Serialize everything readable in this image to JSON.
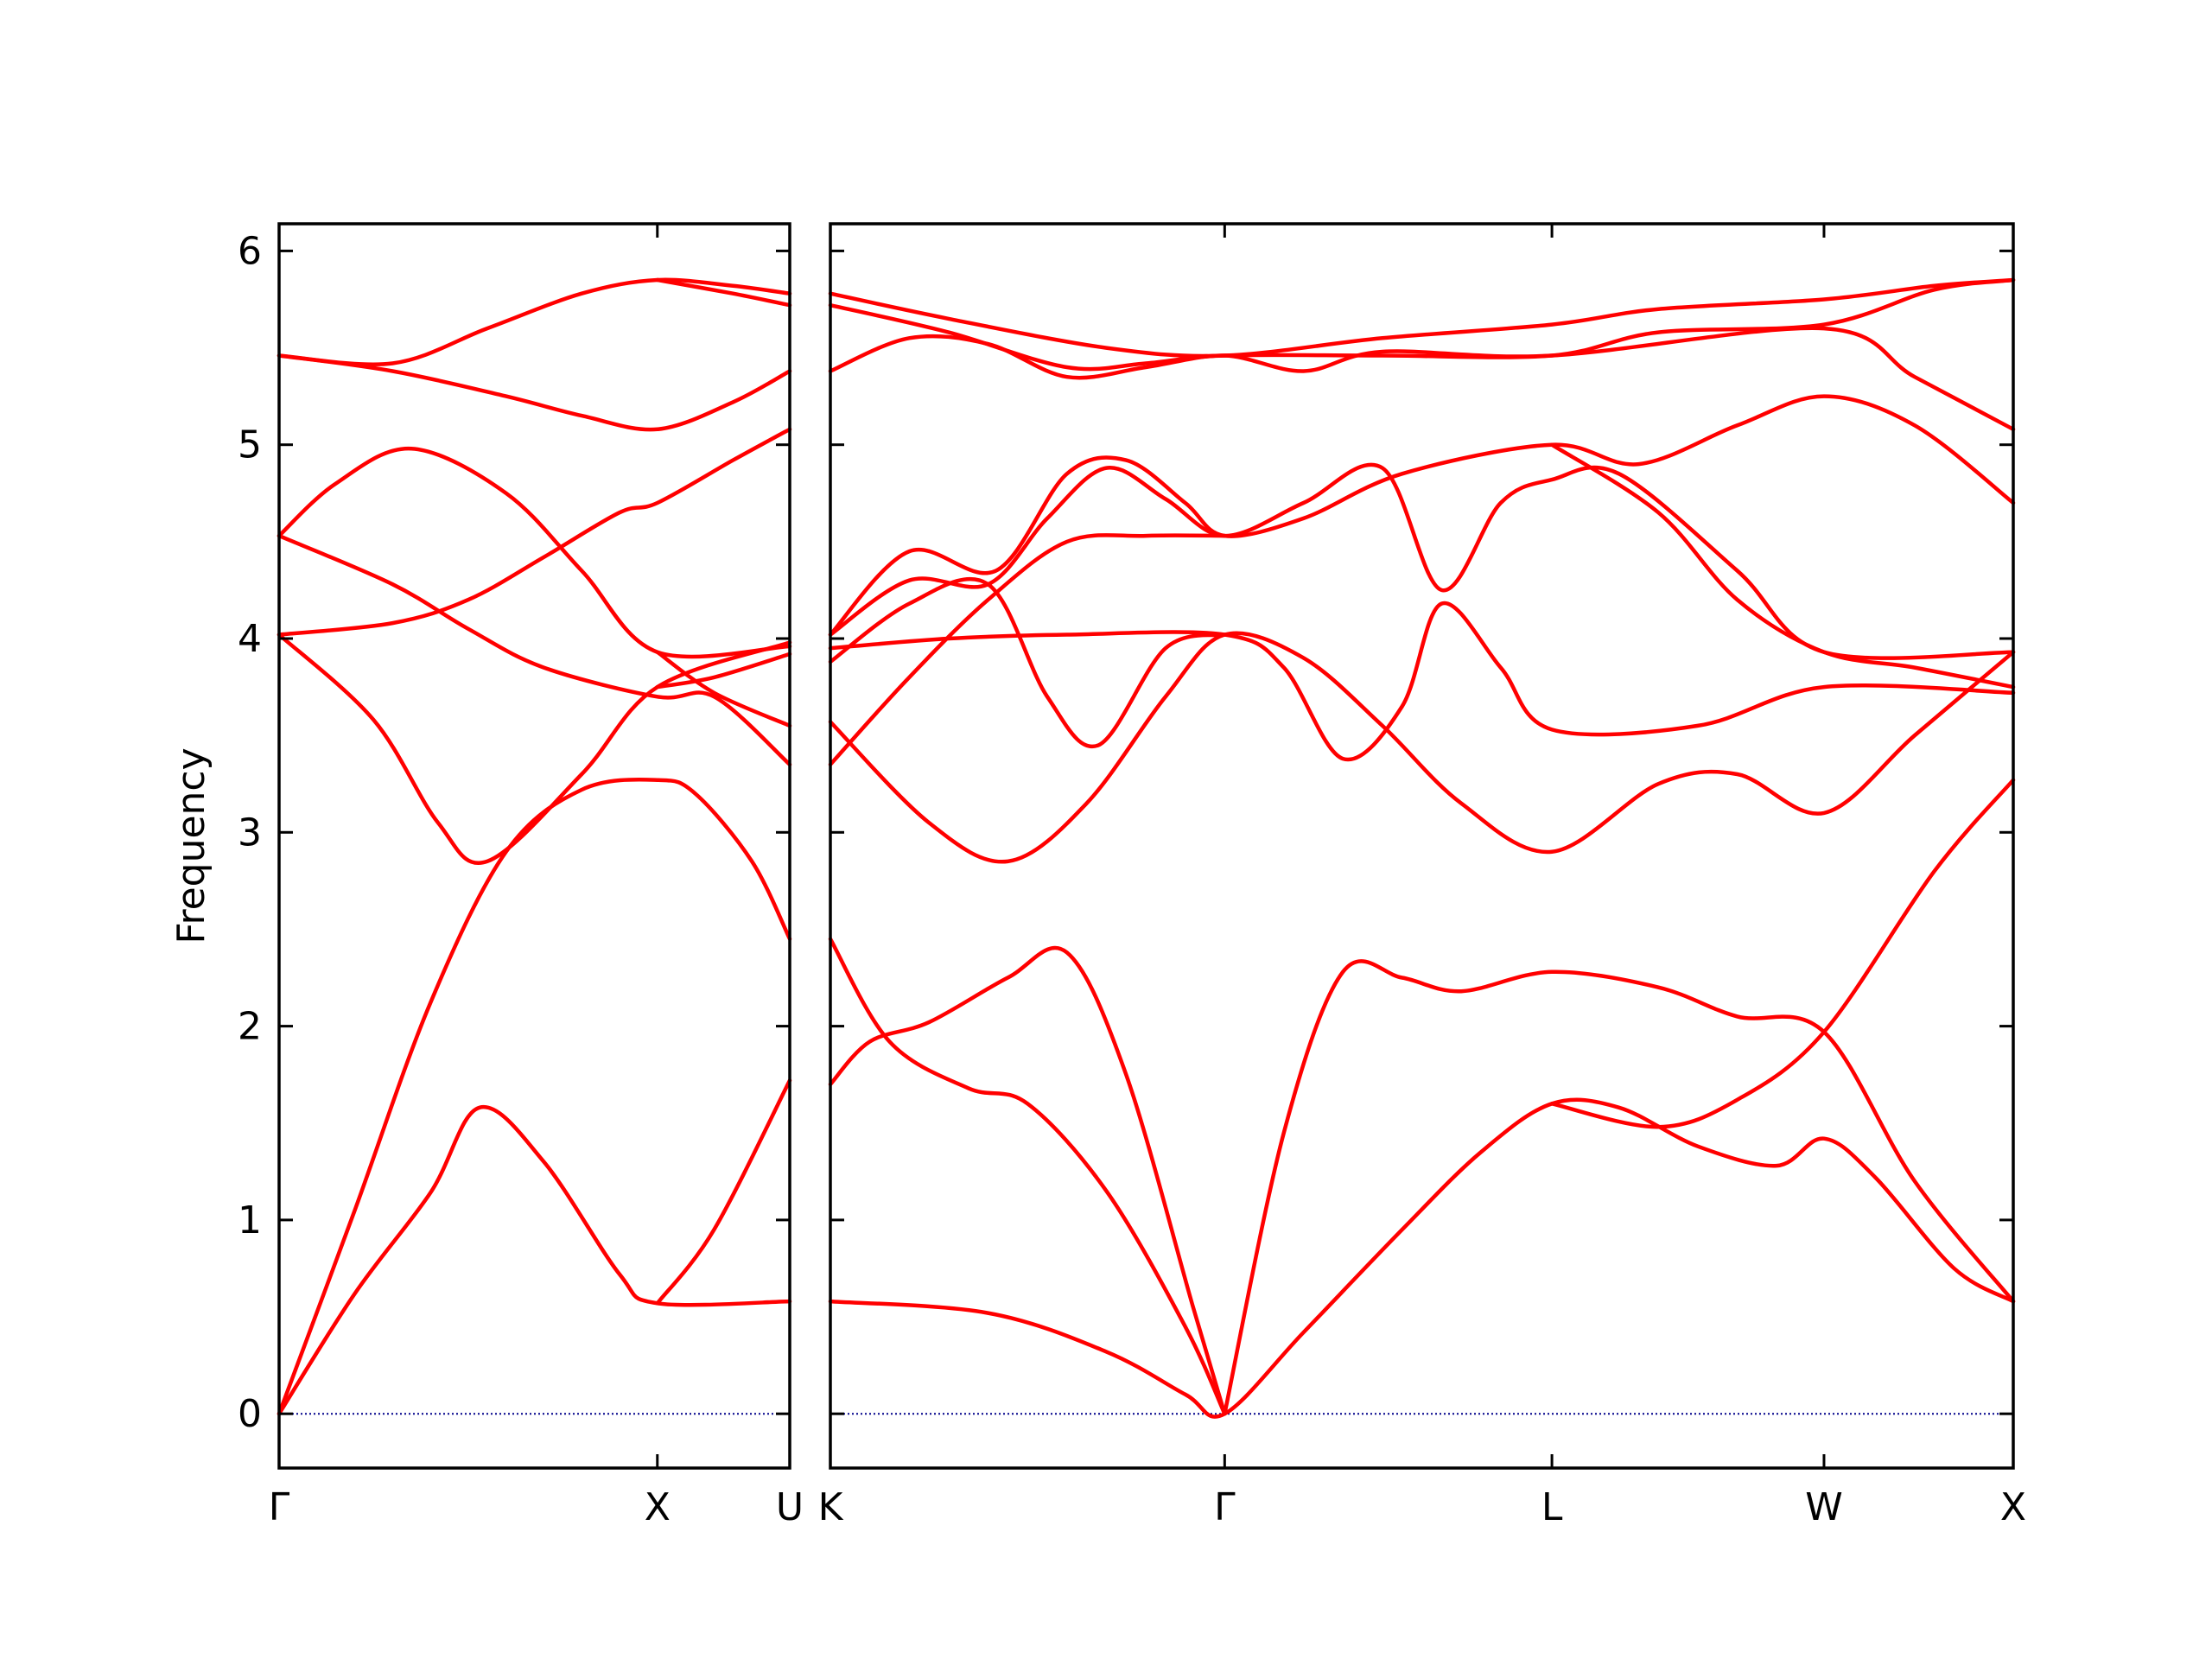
{
  "chart_data": {
    "type": "line",
    "ylabel": "Frequency",
    "ylim": [
      -0.28,
      6.14
    ],
    "yticks": [
      "0",
      "1",
      "2",
      "3",
      "4",
      "5",
      "6"
    ],
    "colors": {
      "bands": "#ff0000",
      "zero_line": "#00008b",
      "axes": "#000000"
    },
    "panels": [
      {
        "name": "Γ–X–U",
        "x_range": [
          0,
          1.35
        ],
        "ticks": [
          {
            "x": 0,
            "label": "Γ"
          },
          {
            "x": 1.0,
            "label": "X"
          },
          {
            "x": 1.35,
            "label": "U"
          }
        ],
        "bands": [
          [
            [
              0,
              0
            ],
            [
              0.2,
              0.62
            ],
            [
              0.4,
              1.14
            ],
            [
              0.53,
              1.58
            ],
            [
              0.7,
              1.3
            ],
            [
              0.9,
              0.72
            ],
            [
              1.0,
              0.57
            ],
            [
              1.35,
              0.58
            ]
          ],
          [
            [
              0,
              0
            ],
            [
              0.2,
              1.05
            ],
            [
              0.4,
              2.12
            ],
            [
              0.6,
              2.9
            ],
            [
              0.8,
              3.22
            ],
            [
              1.0,
              3.27
            ],
            [
              1.1,
              3.2
            ],
            [
              1.25,
              2.85
            ],
            [
              1.35,
              2.45
            ]
          ],
          [
            [
              0,
              4.02
            ],
            [
              0.25,
              3.58
            ],
            [
              0.42,
              3.05
            ],
            [
              0.55,
              2.85
            ],
            [
              0.8,
              3.3
            ],
            [
              1.0,
              3.75
            ],
            [
              1.35,
              3.98
            ]
          ],
          [
            [
              0,
              4.53
            ],
            [
              0.3,
              4.28
            ],
            [
              0.5,
              4.05
            ],
            [
              0.7,
              3.85
            ],
            [
              1.0,
              3.7
            ],
            [
              1.15,
              3.7
            ],
            [
              1.35,
              3.35
            ]
          ],
          [
            [
              0,
              4.02
            ],
            [
              0.3,
              4.08
            ],
            [
              0.5,
              4.2
            ],
            [
              0.7,
              4.42
            ],
            [
              0.9,
              4.65
            ],
            [
              1.0,
              4.7
            ],
            [
              1.2,
              4.92
            ],
            [
              1.35,
              5.08
            ]
          ],
          [
            [
              0,
              4.53
            ],
            [
              0.15,
              4.8
            ],
            [
              0.35,
              4.98
            ],
            [
              0.6,
              4.75
            ],
            [
              0.8,
              4.35
            ],
            [
              1.0,
              3.93
            ],
            [
              1.35,
              3.96
            ]
          ],
          [
            [
              0,
              5.46
            ],
            [
              0.3,
              5.38
            ],
            [
              0.6,
              5.25
            ],
            [
              0.8,
              5.15
            ],
            [
              1.0,
              5.08
            ],
            [
              1.2,
              5.22
            ],
            [
              1.35,
              5.38
            ]
          ],
          [
            [
              0,
              5.46
            ],
            [
              0.3,
              5.42
            ],
            [
              0.55,
              5.6
            ],
            [
              0.8,
              5.78
            ],
            [
              1.0,
              5.85
            ],
            [
              1.2,
              5.82
            ],
            [
              1.35,
              5.78
            ]
          ],
          [
            [
              1.0,
              5.85
            ],
            [
              1.2,
              5.78
            ],
            [
              1.35,
              5.72
            ]
          ],
          [
            [
              1.0,
              3.75
            ],
            [
              1.15,
              3.8
            ],
            [
              1.35,
              3.92
            ]
          ],
          [
            [
              1.0,
              3.93
            ],
            [
              1.15,
              3.72
            ],
            [
              1.35,
              3.55
            ]
          ],
          [
            [
              1.0,
              0.57
            ],
            [
              1.15,
              0.95
            ],
            [
              1.35,
              1.72
            ]
          ]
        ]
      },
      {
        "name": "K–Γ–L–W–X",
        "x_range": [
          0,
          3.0
        ],
        "ticks": [
          {
            "x": 0,
            "label": "K"
          },
          {
            "x": 1.0,
            "label": "Γ"
          },
          {
            "x": 1.83,
            "label": "L"
          },
          {
            "x": 2.52,
            "label": "W"
          },
          {
            "x": 3.0,
            "label": "X"
          }
        ],
        "bands": [
          [
            [
              0,
              0.58
            ],
            [
              0.4,
              0.52
            ],
            [
              0.7,
              0.32
            ],
            [
              0.9,
              0.1
            ],
            [
              1.0,
              0
            ],
            [
              1.2,
              0.42
            ],
            [
              1.45,
              0.95
            ],
            [
              1.65,
              1.35
            ],
            [
              1.83,
              1.6
            ],
            [
              2.0,
              1.58
            ],
            [
              2.2,
              1.38
            ],
            [
              2.4,
              1.28
            ],
            [
              2.52,
              1.42
            ],
            [
              2.65,
              1.22
            ],
            [
              2.85,
              0.75
            ],
            [
              3.0,
              0.58
            ]
          ],
          [
            [
              0,
              1.7
            ],
            [
              0.1,
              1.92
            ],
            [
              0.25,
              2.02
            ],
            [
              0.45,
              2.25
            ],
            [
              0.6,
              2.38
            ],
            [
              0.75,
              1.75
            ],
            [
              0.92,
              0.55
            ],
            [
              1.0,
              0
            ]
          ],
          [
            [
              0,
              2.45
            ],
            [
              0.15,
              1.92
            ],
            [
              0.35,
              1.68
            ],
            [
              0.5,
              1.6
            ],
            [
              0.7,
              1.15
            ],
            [
              0.9,
              0.45
            ],
            [
              1.0,
              0
            ]
          ],
          [
            [
              1.0,
              0
            ],
            [
              1.15,
              1.45
            ],
            [
              1.3,
              2.28
            ],
            [
              1.45,
              2.25
            ],
            [
              1.6,
              2.18
            ],
            [
              1.83,
              2.28
            ],
            [
              2.1,
              2.2
            ],
            [
              2.3,
              2.05
            ],
            [
              2.52,
              1.97
            ],
            [
              2.75,
              1.2
            ],
            [
              3.0,
              0.58
            ]
          ],
          [
            [
              1.83,
              1.6
            ],
            [
              2.1,
              1.48
            ],
            [
              2.3,
              1.62
            ],
            [
              2.52,
              1.97
            ],
            [
              2.8,
              2.8
            ],
            [
              3.0,
              3.27
            ]
          ],
          [
            [
              0,
              3.35
            ],
            [
              0.2,
              3.8
            ],
            [
              0.4,
              4.2
            ],
            [
              0.6,
              4.5
            ],
            [
              0.8,
              4.53
            ],
            [
              1.0,
              4.53
            ]
          ],
          [
            [
              0,
              3.57
            ],
            [
              0.25,
              3.05
            ],
            [
              0.45,
              2.85
            ],
            [
              0.65,
              3.15
            ],
            [
              0.85,
              3.7
            ],
            [
              1.0,
              4.02
            ],
            [
              1.2,
              3.9
            ],
            [
              1.4,
              3.55
            ],
            [
              1.6,
              3.15
            ],
            [
              1.83,
              2.9
            ],
            [
              2.1,
              3.25
            ],
            [
              2.3,
              3.3
            ],
            [
              2.52,
              3.1
            ],
            [
              2.75,
              3.5
            ],
            [
              3.0,
              3.93
            ]
          ],
          [
            [
              0,
              3.95
            ],
            [
              0.3,
              4.0
            ],
            [
              0.6,
              4.02
            ],
            [
              1.0,
              4.02
            ],
            [
              1.15,
              3.85
            ],
            [
              1.3,
              3.38
            ],
            [
              1.45,
              3.65
            ],
            [
              1.55,
              4.18
            ],
            [
              1.7,
              3.85
            ],
            [
              1.83,
              3.53
            ],
            [
              2.2,
              3.55
            ],
            [
              2.52,
              3.75
            ],
            [
              3.0,
              3.72
            ]
          ],
          [
            [
              0,
              3.88
            ],
            [
              0.2,
              4.18
            ],
            [
              0.4,
              4.28
            ],
            [
              0.55,
              3.7
            ],
            [
              0.68,
              3.45
            ],
            [
              0.85,
              3.95
            ],
            [
              1.0,
              4.02
            ]
          ],
          [
            [
              0,
              4.02
            ],
            [
              0.2,
              4.3
            ],
            [
              0.4,
              4.28
            ],
            [
              0.55,
              4.62
            ],
            [
              0.7,
              4.88
            ],
            [
              0.85,
              4.72
            ],
            [
              1.0,
              4.53
            ],
            [
              1.2,
              4.7
            ],
            [
              1.4,
              4.88
            ],
            [
              1.55,
              4.25
            ],
            [
              1.7,
              4.7
            ],
            [
              1.83,
              4.82
            ],
            [
              2.0,
              4.85
            ],
            [
              2.3,
              4.35
            ],
            [
              2.52,
              3.93
            ],
            [
              3.0,
              3.93
            ]
          ],
          [
            [
              0,
              4.02
            ],
            [
              0.2,
              4.45
            ],
            [
              0.42,
              4.35
            ],
            [
              0.6,
              4.85
            ],
            [
              0.75,
              4.92
            ],
            [
              0.9,
              4.7
            ],
            [
              1.0,
              4.53
            ],
            [
              1.2,
              4.62
            ],
            [
              1.45,
              4.85
            ],
            [
              1.83,
              5.0
            ],
            [
              2.05,
              4.9
            ],
            [
              2.3,
              5.1
            ],
            [
              2.52,
              5.25
            ],
            [
              2.75,
              5.1
            ],
            [
              3.0,
              4.7
            ]
          ],
          [
            [
              0,
              5.38
            ],
            [
              0.2,
              5.55
            ],
            [
              0.4,
              5.52
            ],
            [
              0.6,
              5.35
            ],
            [
              0.8,
              5.4
            ],
            [
              1.0,
              5.46
            ],
            [
              1.2,
              5.38
            ],
            [
              1.4,
              5.48
            ],
            [
              1.83,
              5.46
            ],
            [
              2.52,
              5.6
            ],
            [
              2.75,
              5.35
            ],
            [
              3.0,
              5.08
            ]
          ],
          [
            [
              0,
              5.72
            ],
            [
              0.3,
              5.58
            ],
            [
              0.6,
              5.4
            ],
            [
              0.8,
              5.42
            ],
            [
              1.0,
              5.46
            ],
            [
              1.4,
              5.46
            ],
            [
              1.83,
              5.46
            ],
            [
              2.1,
              5.58
            ],
            [
              2.52,
              5.62
            ],
            [
              2.8,
              5.8
            ],
            [
              3.0,
              5.85
            ]
          ],
          [
            [
              0,
              5.78
            ],
            [
              0.3,
              5.65
            ],
            [
              0.7,
              5.5
            ],
            [
              1.0,
              5.46
            ],
            [
              1.4,
              5.55
            ],
            [
              1.83,
              5.62
            ],
            [
              2.1,
              5.7
            ],
            [
              2.52,
              5.75
            ],
            [
              2.8,
              5.82
            ],
            [
              3.0,
              5.85
            ]
          ],
          [
            [
              1.83,
              5.0
            ],
            [
              2.1,
              4.65
            ],
            [
              2.3,
              4.2
            ],
            [
              2.52,
              3.93
            ],
            [
              2.75,
              3.85
            ],
            [
              3.0,
              3.75
            ]
          ]
        ]
      }
    ]
  }
}
